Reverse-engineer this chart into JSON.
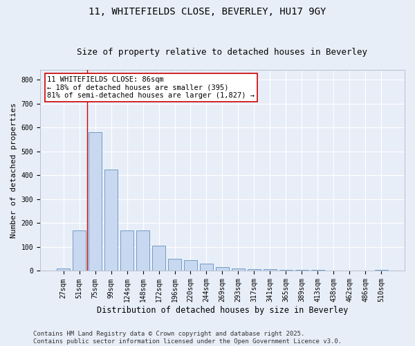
{
  "title": "11, WHITEFIELDS CLOSE, BEVERLEY, HU17 9GY",
  "subtitle": "Size of property relative to detached houses in Beverley",
  "xlabel": "Distribution of detached houses by size in Beverley",
  "ylabel": "Number of detached properties",
  "categories": [
    "27sqm",
    "51sqm",
    "75sqm",
    "99sqm",
    "124sqm",
    "148sqm",
    "172sqm",
    "196sqm",
    "220sqm",
    "244sqm",
    "269sqm",
    "293sqm",
    "317sqm",
    "341sqm",
    "365sqm",
    "389sqm",
    "413sqm",
    "438sqm",
    "462sqm",
    "486sqm",
    "510sqm"
  ],
  "values": [
    10,
    170,
    580,
    425,
    170,
    170,
    105,
    50,
    45,
    30,
    15,
    10,
    8,
    6,
    4,
    3,
    3,
    2,
    2,
    1,
    5
  ],
  "bar_color": "#c8d8f0",
  "bar_edge_color": "#6090c0",
  "vline_color": "#cc0000",
  "vline_pos": 1.5,
  "annotation_text": "11 WHITEFIELDS CLOSE: 86sqm\n← 18% of detached houses are smaller (395)\n81% of semi-detached houses are larger (1,827) →",
  "annotation_box_facecolor": "#ffffff",
  "annotation_box_edgecolor": "#cc0000",
  "ylim": [
    0,
    840
  ],
  "yticks": [
    0,
    100,
    200,
    300,
    400,
    500,
    600,
    700,
    800
  ],
  "footer_text": "Contains HM Land Registry data © Crown copyright and database right 2025.\nContains public sector information licensed under the Open Government Licence v3.0.",
  "bg_color": "#e8eef8",
  "plot_bg_color": "#e8eef8",
  "title_fontsize": 10,
  "subtitle_fontsize": 9,
  "xlabel_fontsize": 8.5,
  "ylabel_fontsize": 8,
  "tick_fontsize": 7,
  "annotation_fontsize": 7.5,
  "footer_fontsize": 6.5
}
